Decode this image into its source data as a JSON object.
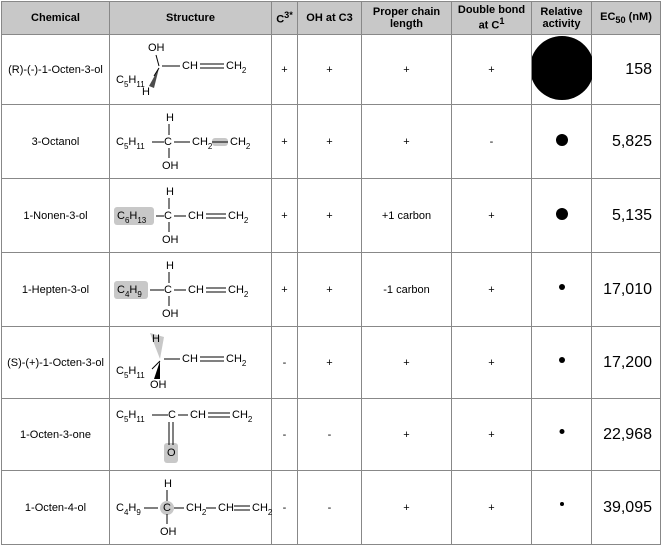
{
  "table": {
    "header": [
      "Chemical",
      "Structure",
      {
        "text": "C",
        "sup": "3*"
      },
      "OH at C3",
      "Proper chain length",
      {
        "text": "Double bond at C",
        "sup": "1"
      },
      "Relative activity",
      {
        "text": "EC",
        "sub": "50",
        "after": " (nM)"
      }
    ],
    "rows": [
      {
        "name": "(R)-(-)-1-Octen-3-ol",
        "structure": [
          "OH",
          "C5H11",
          "H",
          "CH",
          "CH2"
        ],
        "c3": "+",
        "oh": "+",
        "chain": "+",
        "double": "+",
        "ec50": "158"
      },
      {
        "name": "3-Octanol",
        "structure": [
          "H",
          "C5H11",
          "C",
          "CH2",
          "CH2",
          "OH"
        ],
        "c3": "+",
        "oh": "+",
        "chain": "+",
        "double": "-",
        "ec50": "5,825"
      },
      {
        "name": "1-Nonen-3-ol",
        "structure": [
          "H",
          "C6H13",
          "C",
          "CH",
          "CH2",
          "OH"
        ],
        "c3": "+",
        "oh": "+",
        "chain": "+1 carbon",
        "double": "+",
        "ec50": "5,135"
      },
      {
        "name": "1-Hepten-3-ol",
        "structure": [
          "H",
          "C4H9",
          "C",
          "CH",
          "CH2",
          "OH"
        ],
        "c3": "+",
        "oh": "+",
        "chain": "-1 carbon",
        "double": "+",
        "ec50": "17,010"
      },
      {
        "name": "(S)-(+)-1-Octen-3-ol",
        "structure": [
          "H",
          "C5H11",
          "CH",
          "CH2",
          "OH"
        ],
        "c3": "-",
        "oh": "+",
        "chain": "+",
        "double": "+",
        "ec50": "17,200"
      },
      {
        "name": "1-Octen-3-one",
        "structure": [
          "C5H11",
          "C",
          "CH",
          "CH2",
          "O"
        ],
        "c3": "-",
        "oh": "-",
        "chain": "+",
        "double": "+",
        "ec50": "22,968"
      },
      {
        "name": "1-Octen-4-ol",
        "structure": [
          "H",
          "C4H9",
          "C",
          "CH2",
          "CH",
          "CH2",
          "OH"
        ],
        "c3": "-",
        "oh": "-",
        "chain": "+",
        "double": "+",
        "ec50": "39,095"
      }
    ]
  }
}
